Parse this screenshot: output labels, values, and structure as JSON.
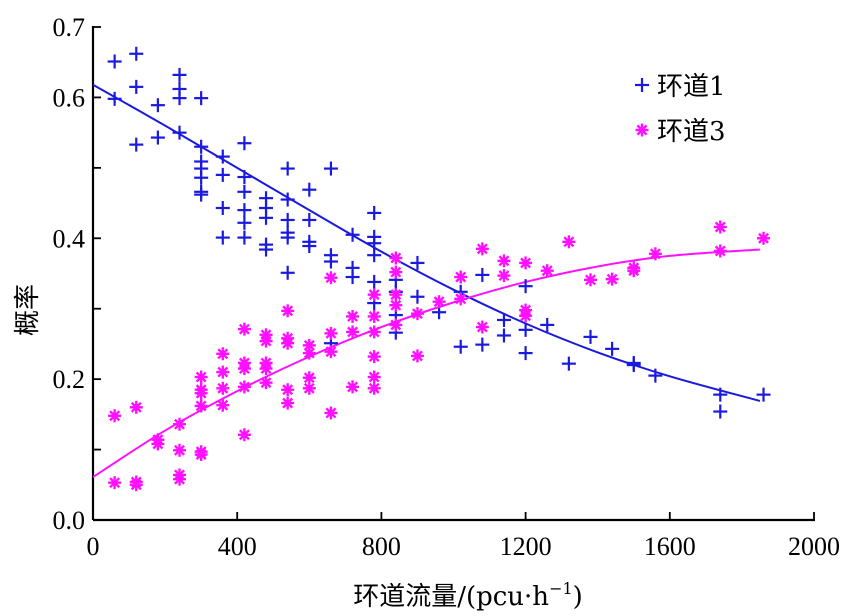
{
  "chart_data": {
    "type": "scatter",
    "title": "",
    "xlabel": "环道流量/(pcu·h",
    "xlabel_sup": "−1",
    "xlabel_close": ")",
    "ylabel": "概率",
    "xlim": [
      0,
      2000
    ],
    "ylim": [
      0,
      0.7
    ],
    "x_ticks": [
      0,
      400,
      800,
      1200,
      1600,
      2000
    ],
    "x_tick_labels": [
      "0",
      "400",
      "800",
      "1200",
      "1600",
      "2000"
    ],
    "y_ticks": [
      0.0,
      0.2,
      0.4,
      0.6,
      0.7
    ],
    "y_tick_labels": [
      "0.0",
      "0.2",
      "0.4",
      "0.6",
      "0.7"
    ],
    "y_minor_ticks": [
      0.1,
      0.3,
      0.5
    ],
    "grid": false,
    "legend_position": "top-right",
    "series": [
      {
        "name": "环道1",
        "marker": "plus",
        "color": "#1a1adf",
        "points": [
          [
            60,
            0.651
          ],
          [
            60,
            0.598
          ],
          [
            120,
            0.662
          ],
          [
            120,
            0.615
          ],
          [
            120,
            0.533
          ],
          [
            180,
            0.589
          ],
          [
            180,
            0.543
          ],
          [
            240,
            0.632
          ],
          [
            240,
            0.612
          ],
          [
            240,
            0.599
          ],
          [
            240,
            0.55
          ],
          [
            300,
            0.599
          ],
          [
            300,
            0.53
          ],
          [
            300,
            0.509
          ],
          [
            300,
            0.499
          ],
          [
            300,
            0.486
          ],
          [
            300,
            0.466
          ],
          [
            300,
            0.462
          ],
          [
            360,
            0.516
          ],
          [
            360,
            0.49
          ],
          [
            360,
            0.443
          ],
          [
            360,
            0.401
          ],
          [
            420,
            0.535
          ],
          [
            420,
            0.487
          ],
          [
            420,
            0.466
          ],
          [
            420,
            0.44
          ],
          [
            420,
            0.422
          ],
          [
            420,
            0.401
          ],
          [
            480,
            0.457
          ],
          [
            480,
            0.443
          ],
          [
            480,
            0.429
          ],
          [
            480,
            0.391
          ],
          [
            480,
            0.384
          ],
          [
            540,
            0.499
          ],
          [
            540,
            0.455
          ],
          [
            540,
            0.426
          ],
          [
            540,
            0.408
          ],
          [
            540,
            0.401
          ],
          [
            540,
            0.351
          ],
          [
            600,
            0.469
          ],
          [
            600,
            0.426
          ],
          [
            600,
            0.395
          ],
          [
            600,
            0.389
          ],
          [
            660,
            0.499
          ],
          [
            660,
            0.376
          ],
          [
            660,
            0.367
          ],
          [
            660,
            0.251
          ],
          [
            720,
            0.405
          ],
          [
            720,
            0.358
          ],
          [
            720,
            0.345
          ],
          [
            780,
            0.436
          ],
          [
            780,
            0.402
          ],
          [
            780,
            0.393
          ],
          [
            780,
            0.376
          ],
          [
            780,
            0.338
          ],
          [
            780,
            0.308
          ],
          [
            840,
            0.341
          ],
          [
            840,
            0.324
          ],
          [
            840,
            0.291
          ],
          [
            840,
            0.266
          ],
          [
            900,
            0.365
          ],
          [
            900,
            0.317
          ],
          [
            960,
            0.295
          ],
          [
            1020,
            0.324
          ],
          [
            1020,
            0.246
          ],
          [
            1080,
            0.348
          ],
          [
            1080,
            0.249
          ],
          [
            1140,
            0.284
          ],
          [
            1140,
            0.262
          ],
          [
            1200,
            0.332
          ],
          [
            1200,
            0.27
          ],
          [
            1200,
            0.237
          ],
          [
            1260,
            0.277
          ],
          [
            1320,
            0.222
          ],
          [
            1380,
            0.26
          ],
          [
            1440,
            0.243
          ],
          [
            1500,
            0.223
          ],
          [
            1500,
            0.22
          ],
          [
            1560,
            0.205
          ],
          [
            1740,
            0.178
          ],
          [
            1740,
            0.154
          ],
          [
            1860,
            0.178
          ]
        ],
        "fit": [
          [
            0,
            0.618
          ],
          [
            200,
            0.56
          ],
          [
            400,
            0.5
          ],
          [
            600,
            0.44
          ],
          [
            800,
            0.381
          ],
          [
            1000,
            0.327
          ],
          [
            1200,
            0.279
          ],
          [
            1400,
            0.238
          ],
          [
            1600,
            0.204
          ],
          [
            1850,
            0.169
          ]
        ]
      },
      {
        "name": "环道3",
        "marker": "asterisk",
        "color": "#ff10ff",
        "points": [
          [
            60,
            0.148
          ],
          [
            60,
            0.053
          ],
          [
            120,
            0.16
          ],
          [
            120,
            0.054
          ],
          [
            120,
            0.05
          ],
          [
            180,
            0.114
          ],
          [
            180,
            0.108
          ],
          [
            240,
            0.136
          ],
          [
            240,
            0.099
          ],
          [
            240,
            0.064
          ],
          [
            240,
            0.058
          ],
          [
            300,
            0.203
          ],
          [
            300,
            0.185
          ],
          [
            300,
            0.18
          ],
          [
            300,
            0.162
          ],
          [
            300,
            0.097
          ],
          [
            300,
            0.093
          ],
          [
            360,
            0.236
          ],
          [
            360,
            0.21
          ],
          [
            360,
            0.187
          ],
          [
            360,
            0.163
          ],
          [
            420,
            0.271
          ],
          [
            420,
            0.223
          ],
          [
            420,
            0.215
          ],
          [
            420,
            0.189
          ],
          [
            420,
            0.121
          ],
          [
            480,
            0.263
          ],
          [
            480,
            0.254
          ],
          [
            480,
            0.223
          ],
          [
            480,
            0.215
          ],
          [
            480,
            0.195
          ],
          [
            540,
            0.297
          ],
          [
            540,
            0.258
          ],
          [
            540,
            0.251
          ],
          [
            540,
            0.185
          ],
          [
            540,
            0.166
          ],
          [
            600,
            0.248
          ],
          [
            600,
            0.237
          ],
          [
            600,
            0.202
          ],
          [
            600,
            0.187
          ],
          [
            660,
            0.344
          ],
          [
            660,
            0.265
          ],
          [
            660,
            0.239
          ],
          [
            660,
            0.152
          ],
          [
            720,
            0.289
          ],
          [
            720,
            0.267
          ],
          [
            720,
            0.189
          ],
          [
            780,
            0.32
          ],
          [
            780,
            0.289
          ],
          [
            780,
            0.267
          ],
          [
            780,
            0.232
          ],
          [
            780,
            0.203
          ],
          [
            780,
            0.187
          ],
          [
            840,
            0.372
          ],
          [
            840,
            0.352
          ],
          [
            840,
            0.32
          ],
          [
            840,
            0.305
          ],
          [
            840,
            0.277
          ],
          [
            900,
            0.293
          ],
          [
            900,
            0.233
          ],
          [
            960,
            0.31
          ],
          [
            1020,
            0.345
          ],
          [
            1020,
            0.314
          ],
          [
            1080,
            0.385
          ],
          [
            1080,
            0.274
          ],
          [
            1140,
            0.368
          ],
          [
            1140,
            0.347
          ],
          [
            1200,
            0.365
          ],
          [
            1200,
            0.298
          ],
          [
            1200,
            0.29
          ],
          [
            1260,
            0.354
          ],
          [
            1320,
            0.395
          ],
          [
            1380,
            0.341
          ],
          [
            1440,
            0.342
          ],
          [
            1500,
            0.358
          ],
          [
            1500,
            0.354
          ],
          [
            1560,
            0.378
          ],
          [
            1740,
            0.416
          ],
          [
            1740,
            0.382
          ],
          [
            1860,
            0.4
          ]
        ],
        "fit": [
          [
            0,
            0.061
          ],
          [
            200,
            0.127
          ],
          [
            400,
            0.183
          ],
          [
            600,
            0.232
          ],
          [
            800,
            0.274
          ],
          [
            1000,
            0.309
          ],
          [
            1200,
            0.338
          ],
          [
            1400,
            0.36
          ],
          [
            1600,
            0.375
          ],
          [
            1850,
            0.384
          ]
        ]
      }
    ]
  }
}
